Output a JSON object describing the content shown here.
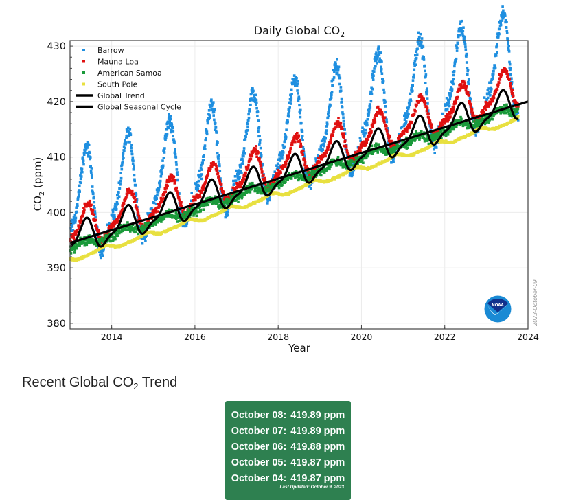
{
  "chart_data": {
    "type": "scatter",
    "title": "Daily Global CO",
    "title_subscript": "2",
    "xlabel": "Year",
    "ylabel": "CO",
    "ylabel_subscript": "2",
    "ylabel_suffix": " (ppm)",
    "xlim": [
      2013,
      2024
    ],
    "ylim": [
      379,
      431
    ],
    "xticks": [
      2014,
      2016,
      2018,
      2020,
      2022,
      2024
    ],
    "xtick_labels": [
      "2014",
      "2016",
      "2018",
      "2020",
      "2022",
      "2024"
    ],
    "yticks": [
      380,
      390,
      400,
      410,
      420,
      430
    ],
    "ytick_labels": [
      "380",
      "390",
      "400",
      "410",
      "420",
      "430"
    ],
    "grid": true,
    "legend_position": "top-left",
    "watermark": "2023-October-09",
    "logo": "NOAA",
    "series": [
      {
        "name": "Barrow",
        "kind": "scatter",
        "color": "#1f8fe0",
        "start_2013": 400.0,
        "growth_per_year": 2.4,
        "seasonal_amplitude": 8.5,
        "peak_phase": 0.35,
        "noise": 1.2
      },
      {
        "name": "Mauna Loa",
        "kind": "scatter",
        "color": "#e01010",
        "start_2013": 396.5,
        "growth_per_year": 2.4,
        "seasonal_amplitude": 3.2,
        "peak_phase": 0.38,
        "noise": 0.6
      },
      {
        "name": "American Samoa",
        "kind": "scatter",
        "color": "#1a9a3a",
        "start_2013": 393.5,
        "growth_per_year": 2.35,
        "seasonal_amplitude": 0.6,
        "peak_phase": 0.3,
        "noise": 0.7
      },
      {
        "name": "South Pole",
        "kind": "scatter",
        "color": "#e8e040",
        "start_2013": 391.5,
        "growth_per_year": 2.35,
        "seasonal_amplitude": 0.4,
        "peak_phase": 0.8,
        "noise": 0.15
      },
      {
        "name": "Global Trend",
        "kind": "line",
        "color": "#000000",
        "x": [
          2013.0,
          2024.0
        ],
        "y": [
          394.5,
          420.0
        ]
      },
      {
        "name": "Global Seasonal Cycle",
        "kind": "line",
        "color": "#000000",
        "start_2013": 394.8,
        "growth_per_year": 2.3,
        "seasonal_amplitude": 2.6,
        "peak_phase": 0.35
      }
    ]
  },
  "recent": {
    "title": "Recent Global CO",
    "title_subscript": "2",
    "title_suffix": " Trend",
    "rows": [
      {
        "date": "October 08:",
        "value": "419.89 ppm"
      },
      {
        "date": "October 07:",
        "value": "419.89 ppm"
      },
      {
        "date": "October 06:",
        "value": "419.88 ppm"
      },
      {
        "date": "October 05:",
        "value": "419.87 ppm"
      },
      {
        "date": "October 04:",
        "value": "419.87 ppm"
      }
    ],
    "last_updated": "Last Updated: October 9, 2023",
    "card_color": "#2e8050"
  }
}
